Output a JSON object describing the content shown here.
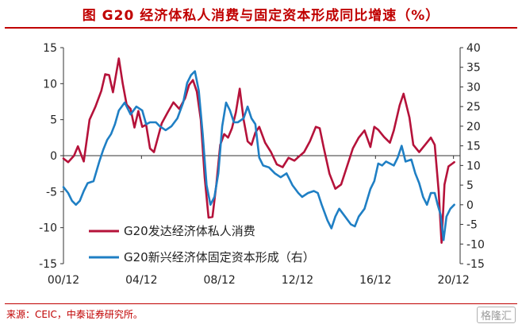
{
  "title": "图  G20 经济体私人消费与固定资本形成同比增速（%）",
  "source": "来源：CEIC，中泰证券研究所。",
  "watermark": "格隆汇",
  "chart_data": {
    "type": "line",
    "x_tick_labels": [
      "00/12",
      "04/12",
      "08/12",
      "12/12",
      "16/12",
      "20/12"
    ],
    "x_range": [
      2000.96,
      2021.3
    ],
    "y_left_ticks": [
      15,
      10,
      5,
      0,
      -5,
      -10,
      -15
    ],
    "y_left_range": [
      -15,
      15
    ],
    "y_right_ticks": [
      40,
      35,
      30,
      25,
      20,
      15,
      10,
      5,
      0,
      -5,
      -10,
      -15
    ],
    "y_right_range": [
      -15,
      40
    ],
    "grid": false,
    "legend_position": "bottom-left",
    "series": [
      {
        "name": "G20发达经济体私人消费",
        "axis": "left",
        "color": "#b5123a",
        "points": [
          [
            2000.96,
            -0.4
          ],
          [
            2001.2,
            -0.9
          ],
          [
            2001.5,
            0
          ],
          [
            2001.7,
            1.3
          ],
          [
            2002.0,
            -0.8
          ],
          [
            2002.3,
            5
          ],
          [
            2002.6,
            6.8
          ],
          [
            2002.9,
            9
          ],
          [
            2003.1,
            11.3
          ],
          [
            2003.3,
            11.2
          ],
          [
            2003.5,
            8.8
          ],
          [
            2003.8,
            13.5
          ],
          [
            2004.0,
            10
          ],
          [
            2004.2,
            7.1
          ],
          [
            2004.4,
            6.5
          ],
          [
            2004.6,
            3.9
          ],
          [
            2004.8,
            6.2
          ],
          [
            2005.0,
            4
          ],
          [
            2005.2,
            4.3
          ],
          [
            2005.4,
            1
          ],
          [
            2005.6,
            0.5
          ],
          [
            2005.8,
            2.5
          ],
          [
            2006.0,
            4.5
          ],
          [
            2006.3,
            6
          ],
          [
            2006.6,
            7.4
          ],
          [
            2006.9,
            6.5
          ],
          [
            2007.2,
            8
          ],
          [
            2007.4,
            9.8
          ],
          [
            2007.6,
            10.5
          ],
          [
            2007.8,
            8.9
          ],
          [
            2008.0,
            5
          ],
          [
            2008.2,
            -3
          ],
          [
            2008.4,
            -8.6
          ],
          [
            2008.6,
            -8.5
          ],
          [
            2008.8,
            -4
          ],
          [
            2009.0,
            1.5
          ],
          [
            2009.2,
            3
          ],
          [
            2009.4,
            2.5
          ],
          [
            2009.6,
            3.8
          ],
          [
            2009.8,
            6
          ],
          [
            2010.0,
            9.3
          ],
          [
            2010.2,
            5
          ],
          [
            2010.4,
            2
          ],
          [
            2010.6,
            1.5
          ],
          [
            2010.8,
            3.2
          ],
          [
            2011.0,
            4
          ],
          [
            2011.3,
            1.8
          ],
          [
            2011.6,
            0.5
          ],
          [
            2011.9,
            -1.2
          ],
          [
            2012.2,
            -1.6
          ],
          [
            2012.5,
            -0.3
          ],
          [
            2012.8,
            -0.7
          ],
          [
            2013.0,
            -0.2
          ],
          [
            2013.3,
            0.5
          ],
          [
            2013.6,
            2
          ],
          [
            2013.9,
            4
          ],
          [
            2014.1,
            3.8
          ],
          [
            2014.3,
            1.2
          ],
          [
            2014.6,
            -2.5
          ],
          [
            2014.9,
            -4.6
          ],
          [
            2015.2,
            -4
          ],
          [
            2015.5,
            -1.5
          ],
          [
            2015.8,
            1
          ],
          [
            2016.1,
            2.5
          ],
          [
            2016.4,
            3.5
          ],
          [
            2016.7,
            1.2
          ],
          [
            2016.9,
            4
          ],
          [
            2017.1,
            3.6
          ],
          [
            2017.4,
            2.6
          ],
          [
            2017.7,
            1.8
          ],
          [
            2017.9,
            3.5
          ],
          [
            2018.2,
            7
          ],
          [
            2018.4,
            8.6
          ],
          [
            2018.7,
            5.3
          ],
          [
            2018.9,
            1.5
          ],
          [
            2019.2,
            0.5
          ],
          [
            2019.5,
            1.5
          ],
          [
            2019.8,
            2.5
          ],
          [
            2020.0,
            1.5
          ],
          [
            2020.2,
            -5
          ],
          [
            2020.35,
            -12.1
          ],
          [
            2020.5,
            -4
          ],
          [
            2020.7,
            -1.5
          ],
          [
            2020.9,
            -1.1
          ],
          [
            2021.0,
            -0.9
          ]
        ]
      },
      {
        "name": "G20新兴经济体固定资本形成（右）",
        "axis": "right",
        "color": "#1f7fc4",
        "points": [
          [
            2000.96,
            4.5
          ],
          [
            2001.2,
            3
          ],
          [
            2001.4,
            1
          ],
          [
            2001.6,
            0
          ],
          [
            2001.8,
            1
          ],
          [
            2002.0,
            3.5
          ],
          [
            2002.2,
            5.5
          ],
          [
            2002.5,
            6
          ],
          [
            2002.8,
            11
          ],
          [
            2003.0,
            14
          ],
          [
            2003.2,
            16.5
          ],
          [
            2003.4,
            18
          ],
          [
            2003.6,
            20.5
          ],
          [
            2003.8,
            24
          ],
          [
            2004.1,
            26
          ],
          [
            2004.4,
            23
          ],
          [
            2004.7,
            25
          ],
          [
            2005.0,
            24
          ],
          [
            2005.2,
            20.5
          ],
          [
            2005.4,
            21
          ],
          [
            2005.7,
            21
          ],
          [
            2005.9,
            20
          ],
          [
            2006.2,
            19
          ],
          [
            2006.5,
            20
          ],
          [
            2006.8,
            22
          ],
          [
            2007.1,
            26
          ],
          [
            2007.3,
            31
          ],
          [
            2007.5,
            33
          ],
          [
            2007.7,
            34
          ],
          [
            2007.9,
            29
          ],
          [
            2008.1,
            18
          ],
          [
            2008.3,
            5
          ],
          [
            2008.5,
            0
          ],
          [
            2008.7,
            2
          ],
          [
            2008.9,
            8
          ],
          [
            2009.1,
            20
          ],
          [
            2009.3,
            26
          ],
          [
            2009.5,
            24
          ],
          [
            2009.7,
            21
          ],
          [
            2009.9,
            21
          ],
          [
            2010.2,
            22
          ],
          [
            2010.4,
            25
          ],
          [
            2010.6,
            22
          ],
          [
            2010.8,
            20.5
          ],
          [
            2011.0,
            12
          ],
          [
            2011.2,
            10
          ],
          [
            2011.5,
            9.5
          ],
          [
            2011.8,
            8
          ],
          [
            2012.1,
            7
          ],
          [
            2012.4,
            8
          ],
          [
            2012.7,
            5
          ],
          [
            2013.0,
            3
          ],
          [
            2013.2,
            2
          ],
          [
            2013.5,
            3
          ],
          [
            2013.8,
            3.5
          ],
          [
            2014.0,
            3
          ],
          [
            2014.2,
            0
          ],
          [
            2014.5,
            -4
          ],
          [
            2014.7,
            -6
          ],
          [
            2014.9,
            -3
          ],
          [
            2015.1,
            -1
          ],
          [
            2015.4,
            -3
          ],
          [
            2015.7,
            -5
          ],
          [
            2015.9,
            -5.5
          ],
          [
            2016.1,
            -3
          ],
          [
            2016.4,
            -1
          ],
          [
            2016.7,
            4
          ],
          [
            2016.9,
            6
          ],
          [
            2017.1,
            10.5
          ],
          [
            2017.3,
            10
          ],
          [
            2017.5,
            11
          ],
          [
            2017.7,
            10.5
          ],
          [
            2017.9,
            10
          ],
          [
            2018.1,
            12
          ],
          [
            2018.3,
            15
          ],
          [
            2018.5,
            11
          ],
          [
            2018.8,
            11.5
          ],
          [
            2019.0,
            8
          ],
          [
            2019.2,
            5.5
          ],
          [
            2019.4,
            2
          ],
          [
            2019.6,
            0
          ],
          [
            2019.8,
            3
          ],
          [
            2020.0,
            3
          ],
          [
            2020.15,
            0
          ],
          [
            2020.3,
            -2.5
          ],
          [
            2020.45,
            -9
          ],
          [
            2020.6,
            -3
          ],
          [
            2020.8,
            -1
          ],
          [
            2021.0,
            0
          ]
        ]
      }
    ]
  }
}
